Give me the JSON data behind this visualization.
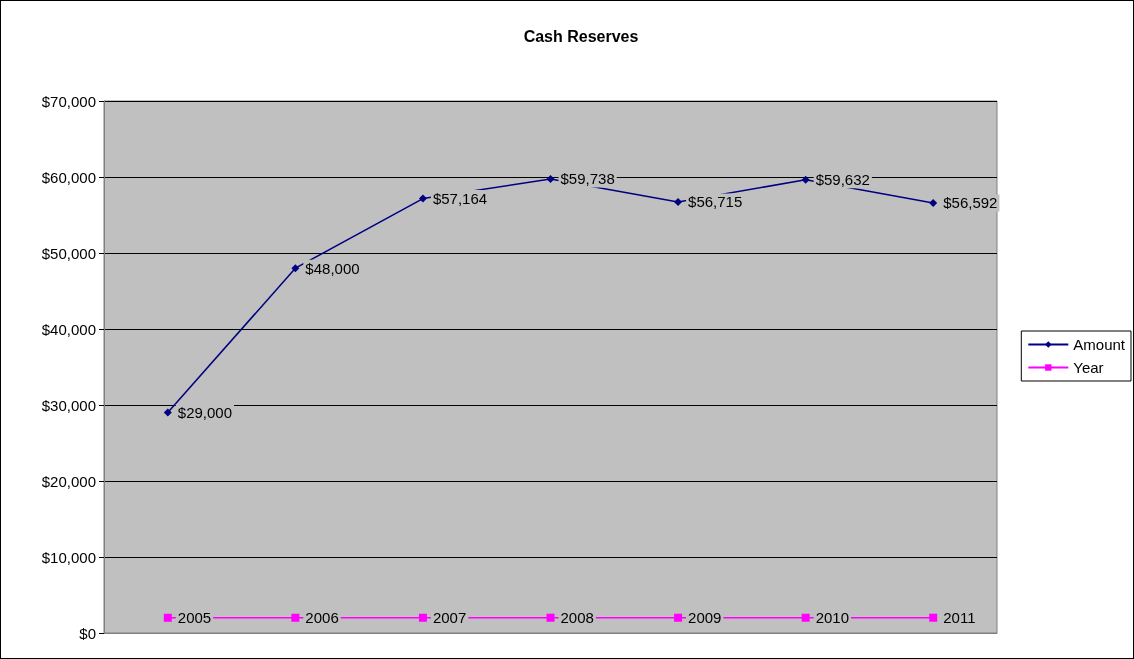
{
  "chart_data": {
    "type": "line",
    "title": "Cash Reserves",
    "categories": [
      null,
      null,
      null,
      null,
      null,
      null,
      null
    ],
    "series": [
      {
        "name": "Amount",
        "color": "#000080",
        "marker": "diamond",
        "values": [
          29000,
          48000,
          57164,
          59738,
          56715,
          59632,
          56592
        ],
        "value_labels": [
          "$29,000",
          "$48,000",
          "$57,164",
          "$59,738",
          "$56,715",
          "$59,632",
          "$56,592"
        ]
      },
      {
        "name": "Year",
        "color": "#ff00ff",
        "marker": "square",
        "values": [
          2005,
          2006,
          2007,
          2008,
          2009,
          2010,
          2011
        ],
        "value_labels": [
          "2005",
          "2006",
          "2007",
          "2008",
          "2009",
          "2010",
          "2011"
        ]
      }
    ],
    "ylim": [
      0,
      70000
    ],
    "yticks": [
      {
        "value": 0,
        "label": "$0"
      },
      {
        "value": 10000,
        "label": "$10,000"
      },
      {
        "value": 20000,
        "label": "$20,000"
      },
      {
        "value": 30000,
        "label": "$30,000"
      },
      {
        "value": 40000,
        "label": "$40,000"
      },
      {
        "value": 50000,
        "label": "$50,000"
      },
      {
        "value": 60000,
        "label": "$60,000"
      },
      {
        "value": 70000,
        "label": "$70,000"
      }
    ],
    "grid": "y",
    "legend": "right"
  }
}
